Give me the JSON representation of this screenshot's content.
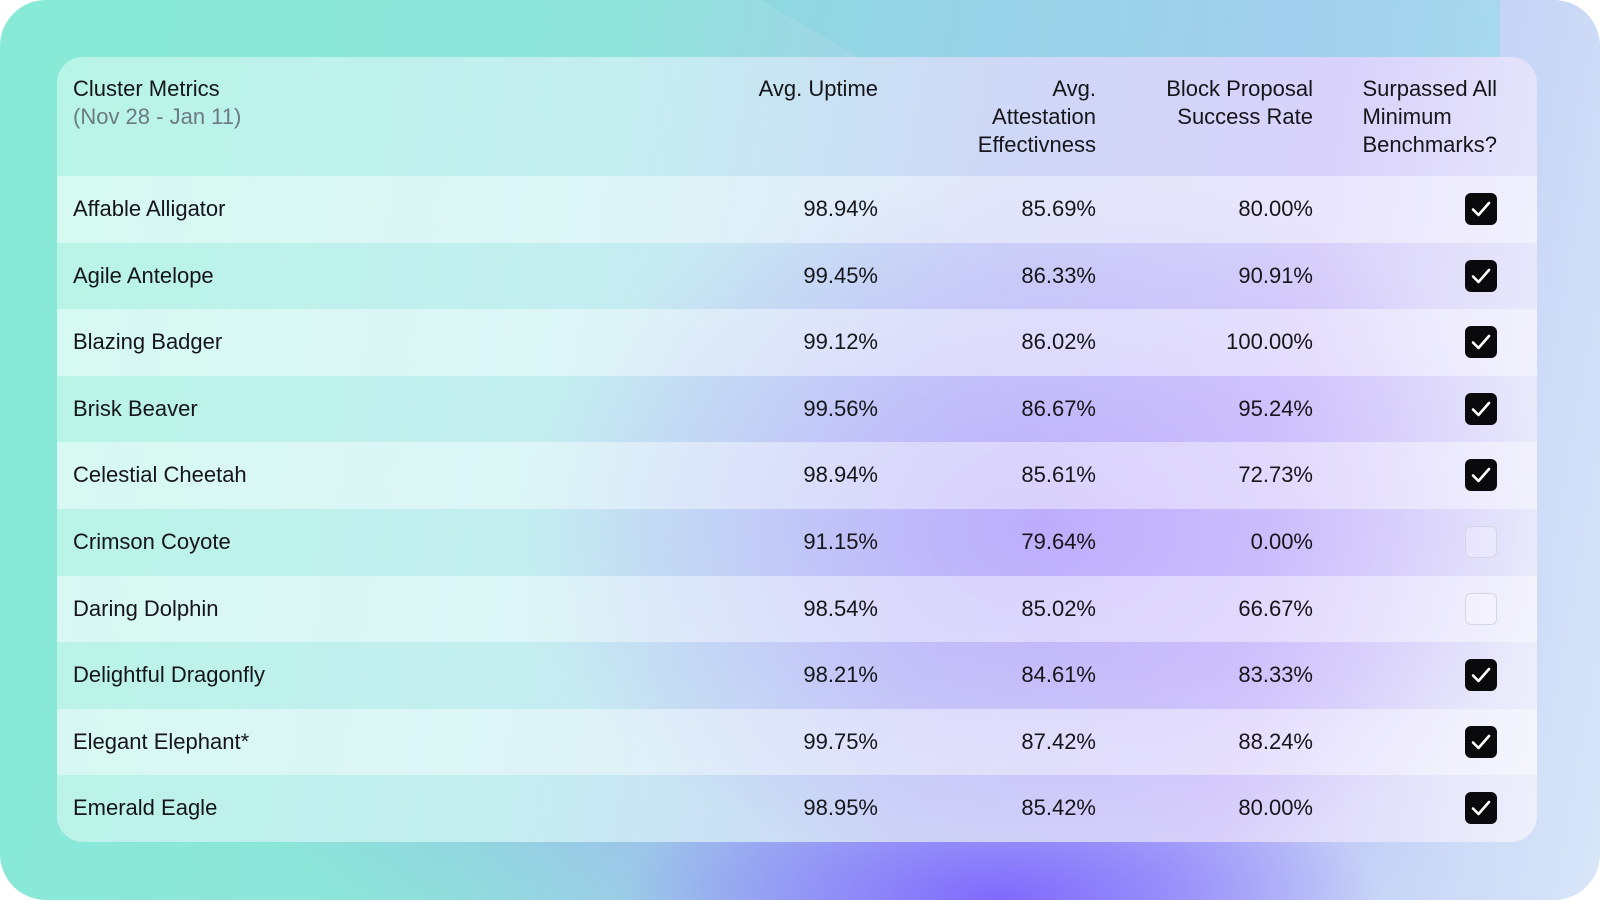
{
  "header": {
    "cluster_title": "Cluster Metrics",
    "date_range": "(Nov 28 - Jan 11)",
    "uptime": "Avg. Uptime",
    "attestation": "Avg.\nAttestation\nEffectivness",
    "block_proposal": "Block Proposal\nSuccess Rate",
    "benchmarks": "Surpassed All\nMinimum\nBenchmarks?"
  },
  "rows": [
    {
      "name": "Affable Alligator",
      "uptime": "98.94%",
      "attestation": "85.69%",
      "block": "80.00%",
      "passed": true
    },
    {
      "name": "Agile Antelope",
      "uptime": "99.45%",
      "attestation": "86.33%",
      "block": "90.91%",
      "passed": true
    },
    {
      "name": "Blazing Badger",
      "uptime": "99.12%",
      "attestation": "86.02%",
      "block": "100.00%",
      "passed": true
    },
    {
      "name": "Brisk Beaver",
      "uptime": "99.56%",
      "attestation": "86.67%",
      "block": "95.24%",
      "passed": true
    },
    {
      "name": "Celestial Cheetah",
      "uptime": "98.94%",
      "attestation": "85.61%",
      "block": "72.73%",
      "passed": true
    },
    {
      "name": "Crimson Coyote",
      "uptime": "91.15%",
      "attestation": "79.64%",
      "block": "0.00%",
      "passed": false
    },
    {
      "name": "Daring Dolphin",
      "uptime": "98.54%",
      "attestation": "85.02%",
      "block": "66.67%",
      "passed": false
    },
    {
      "name": "Delightful Dragonfly",
      "uptime": "98.21%",
      "attestation": "84.61%",
      "block": "83.33%",
      "passed": true
    },
    {
      "name": "Elegant Elephant*",
      "uptime": "99.75%",
      "attestation": "87.42%",
      "block": "88.24%",
      "passed": true
    },
    {
      "name": "Emerald Eagle",
      "uptime": "98.95%",
      "attestation": "85.42%",
      "block": "80.00%",
      "passed": true
    }
  ],
  "icons": {
    "checked": "checkmark-icon",
    "unchecked": "empty-checkbox-icon"
  },
  "colors": {
    "checked_fill": "#0a0a0c",
    "text": "#15151a",
    "muted": "#6c7a80"
  }
}
